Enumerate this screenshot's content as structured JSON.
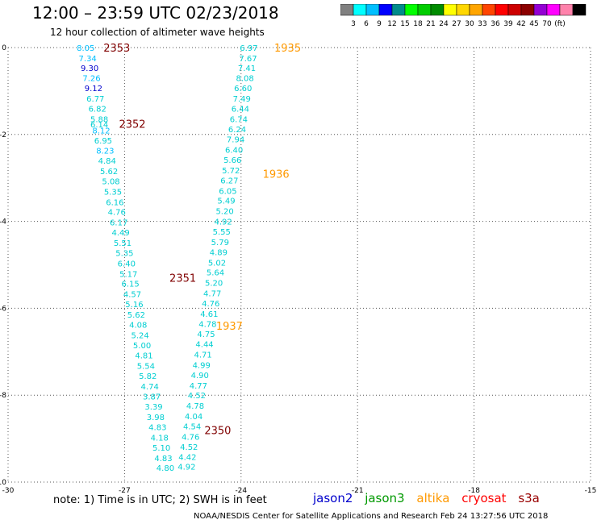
{
  "title": "12:00 – 23:59 UTC 02/23/2018",
  "subtitle": "12 hour collection of altimeter wave heights",
  "legend": {
    "colors": [
      "#808080",
      "#00ffff",
      "#00bfff",
      "#0000ff",
      "#008b8b",
      "#00ff00",
      "#00cd00",
      "#008b00",
      "#ffff00",
      "#ffd700",
      "#ffa500",
      "#ff4500",
      "#ff0000",
      "#cd0000",
      "#8b0000",
      "#9400d3",
      "#ff00ff",
      "#ff82ab",
      "#000000"
    ],
    "labels": [
      "3",
      "6",
      "9",
      "12",
      "15",
      "18",
      "21",
      "24",
      "27",
      "30",
      "33",
      "36",
      "39",
      "42",
      "45",
      "70",
      "(ft)"
    ]
  },
  "note": "note:  1) Time is in UTC; 2) SWH is in feet",
  "satellites": [
    {
      "name": "jason2",
      "color": "#0000cc"
    },
    {
      "name": "jason3",
      "color": "#009900"
    },
    {
      "name": "altika",
      "color": "#ff9900"
    },
    {
      "name": "cryosat",
      "color": "#ff0000"
    },
    {
      "name": "s3a",
      "color": "#990000"
    }
  ],
  "credit": "NOAA/NESDIS Center for Satellite Applications and Research    Feb 24 13:27:56 UTC 2018",
  "chart_data": {
    "type": "scatter",
    "xlim": [
      -30,
      -15
    ],
    "ylim": [
      -10,
      0
    ],
    "x_ticks": [
      "-30",
      "-27",
      "-24",
      "-21",
      "-18",
      "-15"
    ],
    "y_ticks": [
      "0",
      "-2",
      "-4",
      "-6",
      "-8",
      "-10"
    ],
    "grid": true,
    "track_labels": [
      {
        "text": "2353",
        "x": -27.2,
        "y": 0.0,
        "color": "#800000"
      },
      {
        "text": "2352",
        "x": -26.8,
        "y": -1.75,
        "color": "#800000"
      },
      {
        "text": "2351",
        "x": -25.5,
        "y": -5.3,
        "color": "#800000"
      },
      {
        "text": "2350",
        "x": -24.6,
        "y": -8.8,
        "color": "#800000"
      },
      {
        "text": "1935",
        "x": -22.8,
        "y": 0.0,
        "color": "#ff9900"
      },
      {
        "text": "1936",
        "x": -23.1,
        "y": -2.9,
        "color": "#ff9900"
      },
      {
        "text": "1937",
        "x": -24.3,
        "y": -6.4,
        "color": "#ff9900"
      }
    ],
    "series": [
      {
        "points": [
          {
            "x": -28.0,
            "y": 0.0,
            "v": "8.05",
            "c": "#00bfff"
          },
          {
            "x": -27.95,
            "y": -0.24,
            "v": "7.34",
            "c": "#00bfff"
          },
          {
            "x": -27.9,
            "y": -0.46,
            "v": "9.30",
            "c": "#0000cd"
          },
          {
            "x": -27.85,
            "y": -0.7,
            "v": "7.26",
            "c": "#00bfff"
          },
          {
            "x": -27.8,
            "y": -0.93,
            "v": "9.12",
            "c": "#0000cd"
          },
          {
            "x": -27.75,
            "y": -1.17,
            "v": "6.77",
            "c": "#00ced1"
          },
          {
            "x": -27.7,
            "y": -1.4,
            "v": "6.82",
            "c": "#00ced1"
          },
          {
            "x": -27.65,
            "y": -1.64,
            "v": "5.88",
            "c": "#00ced1"
          },
          {
            "x": -27.65,
            "y": -1.76,
            "v": "6.14",
            "c": "#00ced1"
          },
          {
            "x": -27.6,
            "y": -1.9,
            "v": "8.12",
            "c": "#00bfff"
          },
          {
            "x": -27.55,
            "y": -2.13,
            "v": "6.95",
            "c": "#00ced1"
          },
          {
            "x": -27.5,
            "y": -2.37,
            "v": "8.23",
            "c": "#00bfff"
          },
          {
            "x": -27.45,
            "y": -2.6,
            "v": "4.84",
            "c": "#00ced1"
          },
          {
            "x": -27.4,
            "y": -2.84,
            "v": "5.62",
            "c": "#00ced1"
          },
          {
            "x": -27.35,
            "y": -3.07,
            "v": "5.08",
            "c": "#00ced1"
          },
          {
            "x": -27.3,
            "y": -3.31,
            "v": "5.35",
            "c": "#00ced1"
          },
          {
            "x": -27.25,
            "y": -3.55,
            "v": "6.16",
            "c": "#00ced1"
          },
          {
            "x": -27.2,
            "y": -3.78,
            "v": "4.76",
            "c": "#00ced1"
          },
          {
            "x": -27.15,
            "y": -4.02,
            "v": "6.17",
            "c": "#00ced1"
          },
          {
            "x": -27.1,
            "y": -4.25,
            "v": "4.49",
            "c": "#00ced1"
          },
          {
            "x": -27.05,
            "y": -4.49,
            "v": "5.51",
            "c": "#00ced1"
          },
          {
            "x": -27.0,
            "y": -4.72,
            "v": "5.35",
            "c": "#00ced1"
          },
          {
            "x": -26.95,
            "y": -4.96,
            "v": "6.40",
            "c": "#00ced1"
          },
          {
            "x": -26.9,
            "y": -5.2,
            "v": "5.17",
            "c": "#00ced1"
          },
          {
            "x": -26.85,
            "y": -5.43,
            "v": "6.15",
            "c": "#00ced1"
          },
          {
            "x": -26.8,
            "y": -5.67,
            "v": "4.57",
            "c": "#00ced1"
          },
          {
            "x": -26.75,
            "y": -5.9,
            "v": "5.16",
            "c": "#00ced1"
          },
          {
            "x": -26.7,
            "y": -6.14,
            "v": "5.62",
            "c": "#00ced1"
          },
          {
            "x": -26.65,
            "y": -6.37,
            "v": "4.08",
            "c": "#00ced1"
          },
          {
            "x": -26.6,
            "y": -6.61,
            "v": "5.24",
            "c": "#00ced1"
          },
          {
            "x": -26.55,
            "y": -6.85,
            "v": "5.00",
            "c": "#00ced1"
          },
          {
            "x": -26.5,
            "y": -7.08,
            "v": "4.81",
            "c": "#00ced1"
          },
          {
            "x": -26.45,
            "y": -7.32,
            "v": "5.54",
            "c": "#00ced1"
          },
          {
            "x": -26.4,
            "y": -7.55,
            "v": "5.82",
            "c": "#00ced1"
          },
          {
            "x": -26.35,
            "y": -7.79,
            "v": "4.74",
            "c": "#00ced1"
          },
          {
            "x": -26.3,
            "y": -8.02,
            "v": "3.87",
            "c": "#00ced1"
          },
          {
            "x": -26.25,
            "y": -8.26,
            "v": "3.39",
            "c": "#00ced1"
          },
          {
            "x": -26.2,
            "y": -8.5,
            "v": "3.98",
            "c": "#00ced1"
          },
          {
            "x": -26.15,
            "y": -8.73,
            "v": "4.83",
            "c": "#00ced1"
          },
          {
            "x": -26.1,
            "y": -8.97,
            "v": "4.18",
            "c": "#00ced1"
          },
          {
            "x": -26.05,
            "y": -9.2,
            "v": "5.10",
            "c": "#00ced1"
          },
          {
            "x": -26.0,
            "y": -9.44,
            "v": "4.83",
            "c": "#00ced1"
          },
          {
            "x": -25.95,
            "y": -9.67,
            "v": "4.80",
            "c": "#00ced1"
          }
        ]
      },
      {
        "points": [
          {
            "x": -23.8,
            "y": 0.0,
            "v": "6.97",
            "c": "#00ced1"
          },
          {
            "x": -23.82,
            "y": -0.24,
            "v": "7.67",
            "c": "#00ced1"
          },
          {
            "x": -23.85,
            "y": -0.46,
            "v": "7.41",
            "c": "#00ced1"
          },
          {
            "x": -23.9,
            "y": -0.7,
            "v": "8.08",
            "c": "#00ced1"
          },
          {
            "x": -23.95,
            "y": -0.93,
            "v": "6.60",
            "c": "#00ced1"
          },
          {
            "x": -23.98,
            "y": -1.17,
            "v": "7.49",
            "c": "#00ced1"
          },
          {
            "x": -24.02,
            "y": -1.4,
            "v": "6.44",
            "c": "#00ced1"
          },
          {
            "x": -24.06,
            "y": -1.64,
            "v": "6.74",
            "c": "#00ced1"
          },
          {
            "x": -24.1,
            "y": -1.87,
            "v": "6.24",
            "c": "#00ced1"
          },
          {
            "x": -24.14,
            "y": -2.11,
            "v": "7.94",
            "c": "#00ced1"
          },
          {
            "x": -24.18,
            "y": -2.35,
            "v": "6.40",
            "c": "#00ced1"
          },
          {
            "x": -24.22,
            "y": -2.58,
            "v": "5.66",
            "c": "#00ced1"
          },
          {
            "x": -24.26,
            "y": -2.82,
            "v": "5.72",
            "c": "#00ced1"
          },
          {
            "x": -24.3,
            "y": -3.05,
            "v": "6.27",
            "c": "#00ced1"
          },
          {
            "x": -24.34,
            "y": -3.29,
            "v": "6.05",
            "c": "#00ced1"
          },
          {
            "x": -24.38,
            "y": -3.52,
            "v": "5.49",
            "c": "#00ced1"
          },
          {
            "x": -24.42,
            "y": -3.76,
            "v": "5.20",
            "c": "#00ced1"
          },
          {
            "x": -24.46,
            "y": -4.0,
            "v": "4.92",
            "c": "#00ced1"
          },
          {
            "x": -24.5,
            "y": -4.23,
            "v": "5.55",
            "c": "#00ced1"
          },
          {
            "x": -24.54,
            "y": -4.47,
            "v": "5.79",
            "c": "#00ced1"
          },
          {
            "x": -24.58,
            "y": -4.7,
            "v": "4.89",
            "c": "#00ced1"
          },
          {
            "x": -24.62,
            "y": -4.94,
            "v": "5.02",
            "c": "#00ced1"
          },
          {
            "x": -24.66,
            "y": -5.17,
            "v": "5.64",
            "c": "#00ced1"
          },
          {
            "x": -24.7,
            "y": -5.41,
            "v": "5.20",
            "c": "#00ced1"
          },
          {
            "x": -24.74,
            "y": -5.65,
            "v": "4.77",
            "c": "#00ced1"
          },
          {
            "x": -24.78,
            "y": -5.88,
            "v": "4.76",
            "c": "#00ced1"
          },
          {
            "x": -24.82,
            "y": -6.12,
            "v": "4.61",
            "c": "#00ced1"
          },
          {
            "x": -24.86,
            "y": -6.35,
            "v": "4.78",
            "c": "#00ced1"
          },
          {
            "x": -24.9,
            "y": -6.59,
            "v": "4.75",
            "c": "#00ced1"
          },
          {
            "x": -24.94,
            "y": -6.82,
            "v": "4.44",
            "c": "#00ced1"
          },
          {
            "x": -24.98,
            "y": -7.06,
            "v": "4.71",
            "c": "#00ced1"
          },
          {
            "x": -25.02,
            "y": -7.3,
            "v": "4.99",
            "c": "#00ced1"
          },
          {
            "x": -25.06,
            "y": -7.53,
            "v": "4.90",
            "c": "#00ced1"
          },
          {
            "x": -25.1,
            "y": -7.77,
            "v": "4.77",
            "c": "#00ced1"
          },
          {
            "x": -25.14,
            "y": -8.0,
            "v": "4.52",
            "c": "#00ced1"
          },
          {
            "x": -25.18,
            "y": -8.24,
            "v": "4.78",
            "c": "#00ced1"
          },
          {
            "x": -25.22,
            "y": -8.48,
            "v": "4.04",
            "c": "#00ced1"
          },
          {
            "x": -25.26,
            "y": -8.71,
            "v": "4.54",
            "c": "#00ced1"
          },
          {
            "x": -25.3,
            "y": -8.95,
            "v": "4.76",
            "c": "#00ced1"
          },
          {
            "x": -25.34,
            "y": -9.18,
            "v": "4.52",
            "c": "#00ced1"
          },
          {
            "x": -25.38,
            "y": -9.42,
            "v": "4.42",
            "c": "#00ced1"
          },
          {
            "x": -25.4,
            "y": -9.64,
            "v": "4.92",
            "c": "#00ced1"
          }
        ]
      }
    ]
  }
}
